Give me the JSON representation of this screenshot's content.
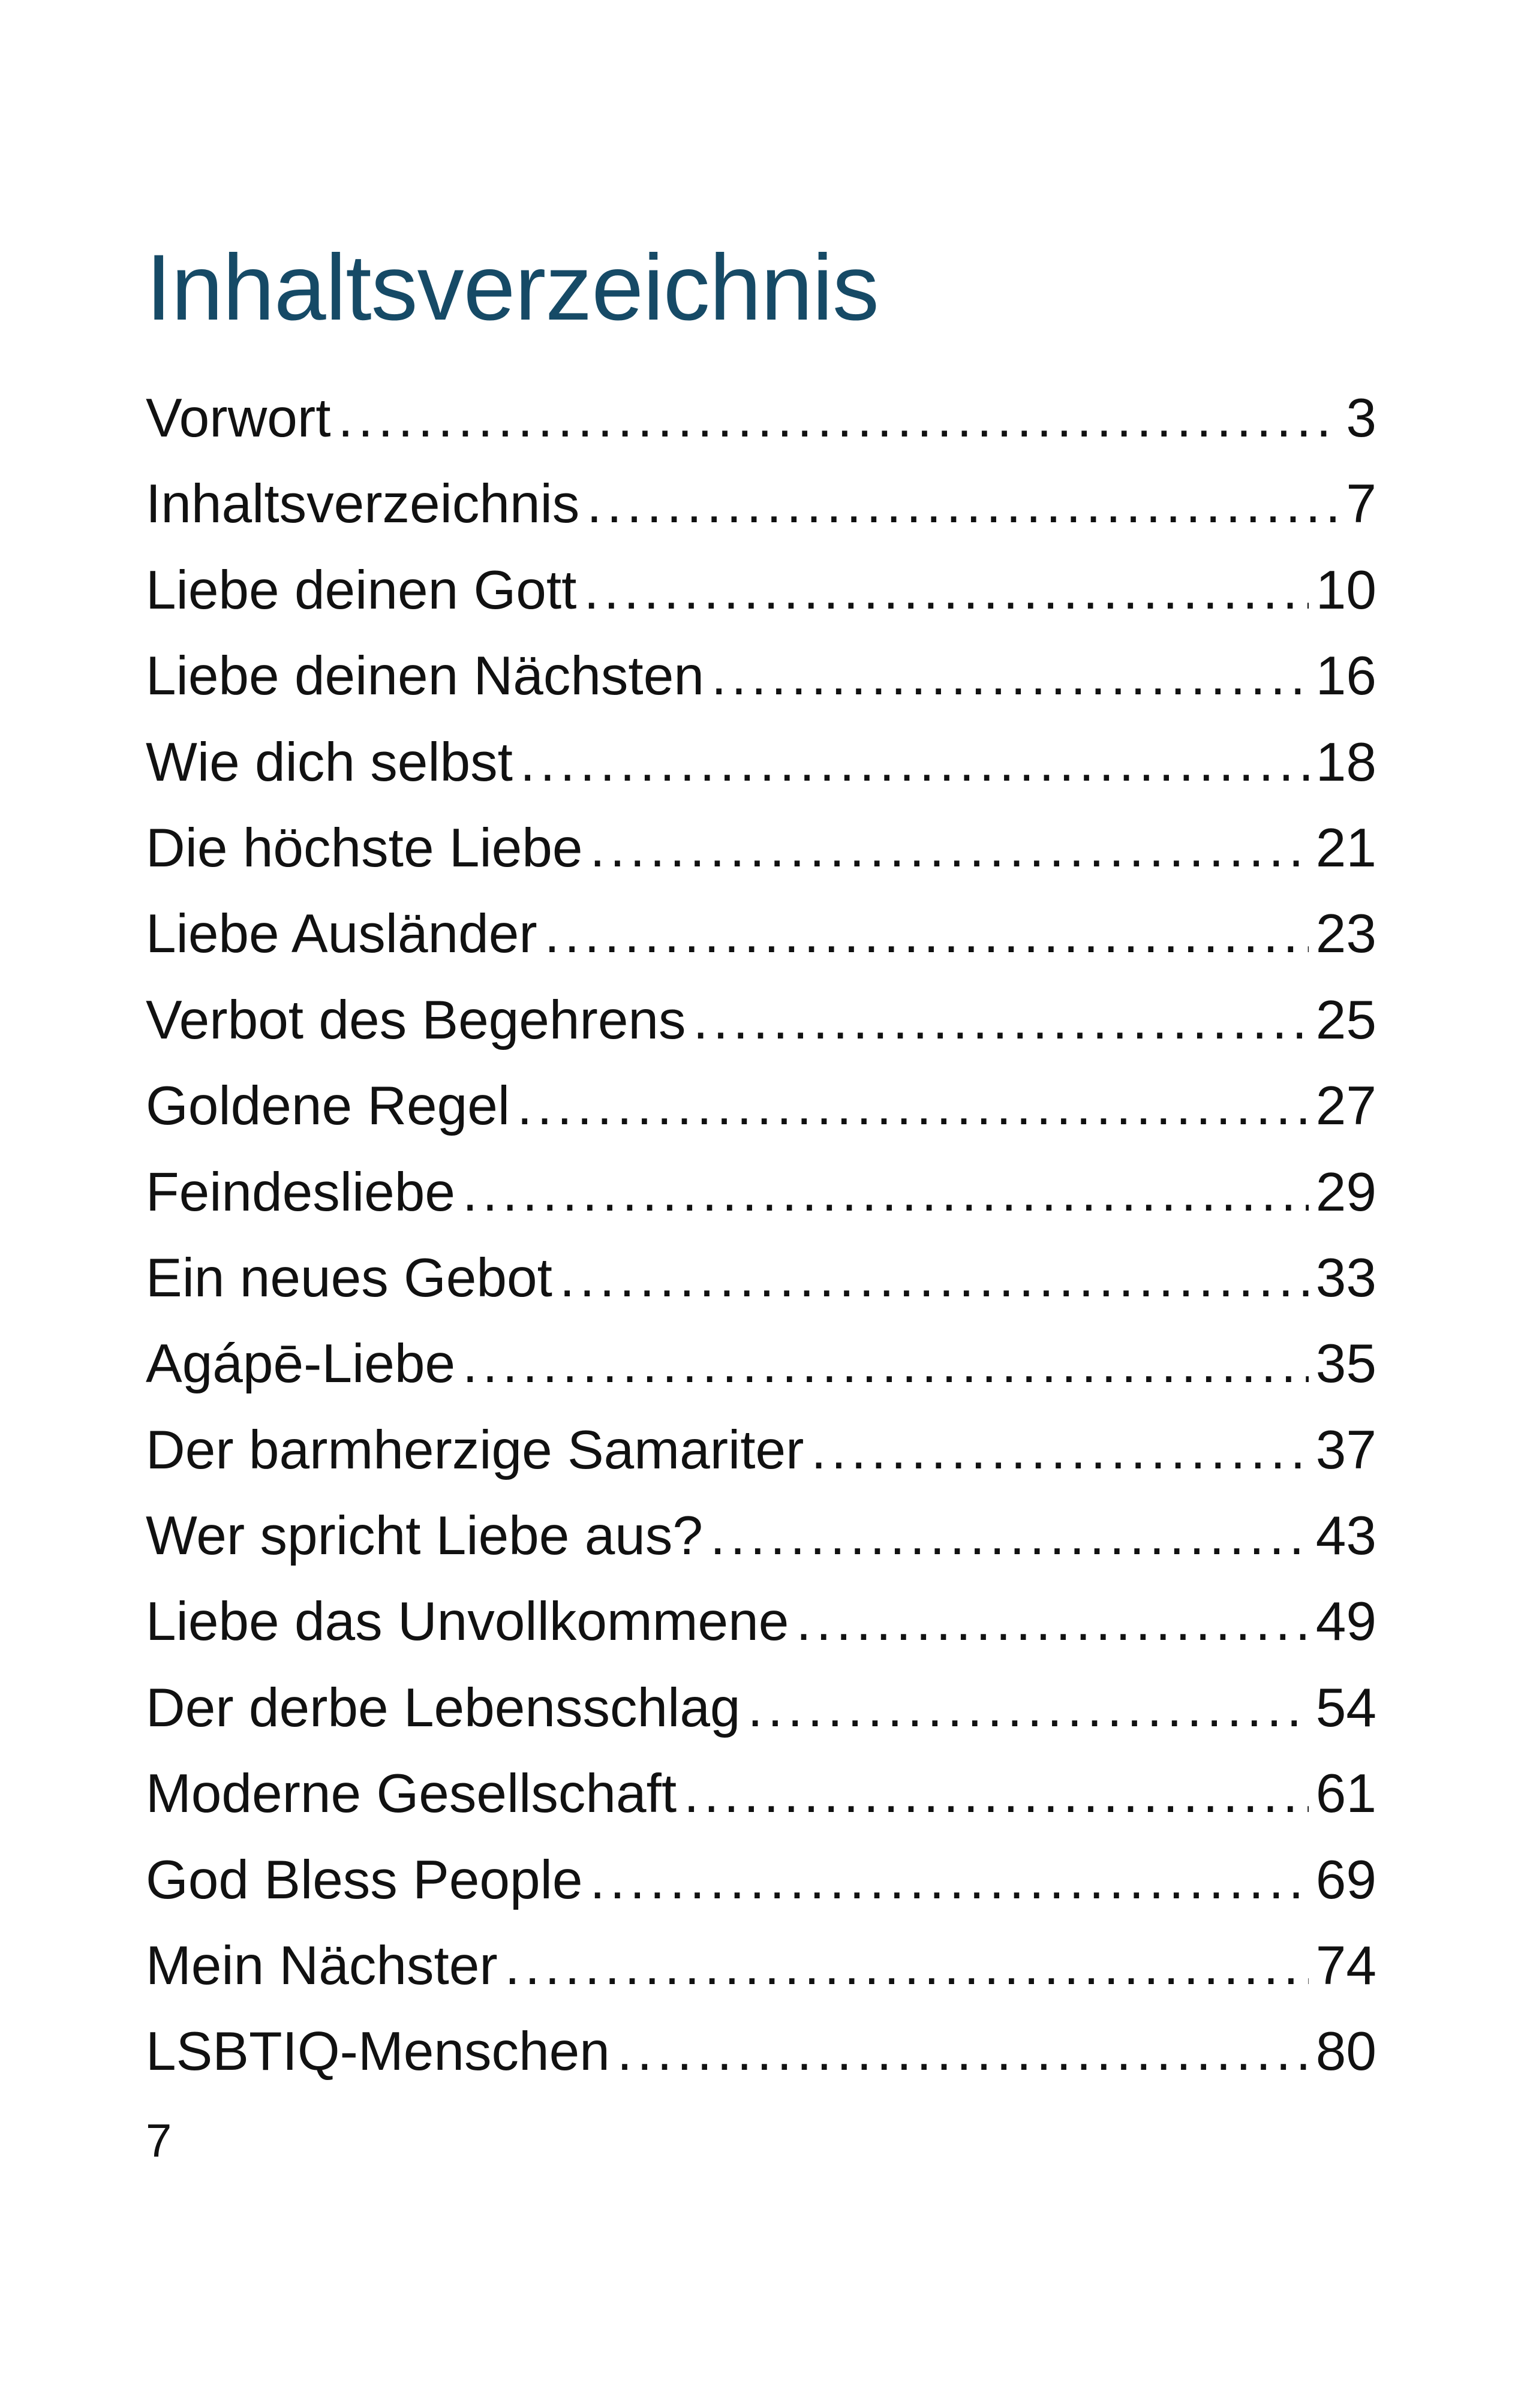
{
  "colors": {
    "title": "#164a66",
    "text": "#111111",
    "background": "#ffffff"
  },
  "toc": {
    "title": "Inhaltsverzeichnis",
    "entries": [
      {
        "label": "Vorwort",
        "page": "3"
      },
      {
        "label": "Inhaltsverzeichnis",
        "page": "7"
      },
      {
        "label": "Liebe deinen Gott",
        "page": "10"
      },
      {
        "label": "Liebe deinen Nächsten",
        "page": "16"
      },
      {
        "label": "Wie dich selbst",
        "page": "18"
      },
      {
        "label": "Die höchste Liebe",
        "page": "21"
      },
      {
        "label": "Liebe Ausländer",
        "page": "23"
      },
      {
        "label": "Verbot des Begehrens",
        "page": "25"
      },
      {
        "label": "Goldene Regel",
        "page": "27"
      },
      {
        "label": "Feindesliebe",
        "page": "29"
      },
      {
        "label": "Ein neues Gebot",
        "page": "33"
      },
      {
        "label": "Agápē-Liebe",
        "page": "35"
      },
      {
        "label": "Der barmherzige Samariter",
        "page": "37"
      },
      {
        "label": "Wer spricht Liebe aus?",
        "page": "43"
      },
      {
        "label": "Liebe das Unvollkommene",
        "page": "49"
      },
      {
        "label": "Der derbe Lebensschlag",
        "page": "54"
      },
      {
        "label": "Moderne Gesellschaft",
        "page": "61"
      },
      {
        "label": "God Bless People",
        "page": "69"
      },
      {
        "label": "Mein Nächster",
        "page": "74"
      },
      {
        "label": "LSBTIQ-Menschen",
        "page": "80"
      }
    ]
  },
  "footer": {
    "page_number": "7"
  }
}
